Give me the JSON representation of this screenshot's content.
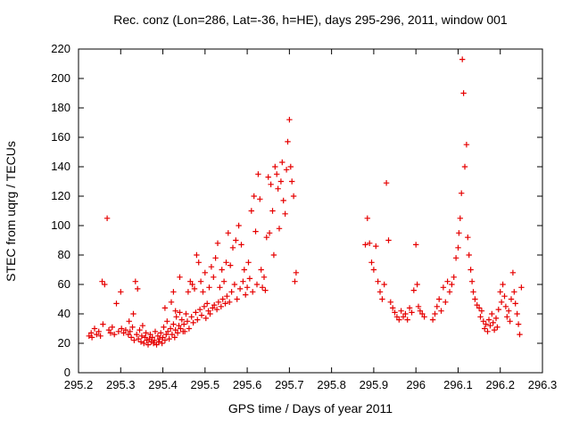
{
  "chart_data": {
    "type": "scatter",
    "title": "Rec. conz (Lon=286, Lat=-36, h=HE), days 295-296, 2011, window 001",
    "xlabel": "GPS time / Days of year 2011",
    "ylabel": "STEC from uqrg / TECUs",
    "xlim": [
      295.2,
      296.3
    ],
    "ylim": [
      0,
      220
    ],
    "grid": false,
    "legend_position": "none",
    "marker": "plus",
    "marker_color": "#e60000",
    "frame_color": "#000000",
    "x_ticks": {
      "values": [
        295.2,
        295.3,
        295.4,
        295.5,
        295.6,
        295.7,
        295.8,
        295.9,
        296.0,
        296.1,
        296.2,
        296.3
      ],
      "labels": [
        "295.2",
        "295.3",
        "295.4",
        "295.5",
        "295.6",
        "295.7",
        "295.8",
        "295.9",
        "296",
        "296.1",
        "296.2",
        "296.3"
      ]
    },
    "y_ticks": {
      "values": [
        0,
        20,
        40,
        60,
        80,
        100,
        120,
        140,
        160,
        180,
        200,
        220
      ],
      "labels": [
        "0",
        "20",
        "40",
        "60",
        "80",
        "100",
        "120",
        "140",
        "160",
        "180",
        "200",
        "220"
      ]
    },
    "points": [
      [
        295.225,
        25
      ],
      [
        295.23,
        27
      ],
      [
        295.232,
        24
      ],
      [
        295.238,
        30
      ],
      [
        295.243,
        26
      ],
      [
        295.248,
        28
      ],
      [
        295.252,
        25
      ],
      [
        295.256,
        62
      ],
      [
        295.258,
        33
      ],
      [
        295.262,
        60
      ],
      [
        295.268,
        105
      ],
      [
        295.272,
        29
      ],
      [
        295.276,
        27
      ],
      [
        295.28,
        31
      ],
      [
        295.285,
        26
      ],
      [
        295.29,
        47
      ],
      [
        295.295,
        28
      ],
      [
        295.3,
        55
      ],
      [
        295.302,
        30
      ],
      [
        295.307,
        27
      ],
      [
        295.312,
        29
      ],
      [
        295.318,
        26
      ],
      [
        295.32,
        35
      ],
      [
        295.322,
        28
      ],
      [
        295.325,
        24
      ],
      [
        295.328,
        31
      ],
      [
        295.33,
        40
      ],
      [
        295.332,
        22
      ],
      [
        295.335,
        62
      ],
      [
        295.338,
        26
      ],
      [
        295.34,
        57
      ],
      [
        295.342,
        23
      ],
      [
        295.345,
        29
      ],
      [
        295.348,
        21
      ],
      [
        295.35,
        25
      ],
      [
        295.352,
        32
      ],
      [
        295.355,
        20
      ],
      [
        295.358,
        24
      ],
      [
        295.36,
        27
      ],
      [
        295.362,
        22
      ],
      [
        295.365,
        19
      ],
      [
        295.368,
        23
      ],
      [
        295.37,
        26
      ],
      [
        295.372,
        21
      ],
      [
        295.375,
        24
      ],
      [
        295.378,
        20
      ],
      [
        295.38,
        22
      ],
      [
        295.382,
        28
      ],
      [
        295.385,
        19
      ],
      [
        295.388,
        25
      ],
      [
        295.39,
        21
      ],
      [
        295.392,
        23
      ],
      [
        295.395,
        27
      ],
      [
        295.398,
        20
      ],
      [
        295.4,
        24
      ],
      [
        295.402,
        31
      ],
      [
        295.405,
        44
      ],
      [
        295.405,
        22
      ],
      [
        295.408,
        26
      ],
      [
        295.41,
        35
      ],
      [
        295.412,
        28
      ],
      [
        295.415,
        23
      ],
      [
        295.418,
        30
      ],
      [
        295.42,
        48
      ],
      [
        295.422,
        26
      ],
      [
        295.425,
        55
      ],
      [
        295.425,
        33
      ],
      [
        295.428,
        24
      ],
      [
        295.43,
        42
      ],
      [
        295.43,
        29
      ],
      [
        295.432,
        38
      ],
      [
        295.435,
        27
      ],
      [
        295.438,
        32
      ],
      [
        295.44,
        65
      ],
      [
        295.44,
        41
      ],
      [
        295.442,
        30
      ],
      [
        295.445,
        36
      ],
      [
        295.448,
        28
      ],
      [
        295.45,
        33
      ],
      [
        295.452,
        28
      ],
      [
        295.455,
        40
      ],
      [
        295.458,
        35
      ],
      [
        295.46,
        55
      ],
      [
        295.462,
        30
      ],
      [
        295.465,
        62
      ],
      [
        295.468,
        38
      ],
      [
        295.47,
        60
      ],
      [
        295.472,
        34
      ],
      [
        295.475,
        57
      ],
      [
        295.478,
        41
      ],
      [
        295.48,
        80
      ],
      [
        295.482,
        36
      ],
      [
        295.485,
        75
      ],
      [
        295.488,
        43
      ],
      [
        295.49,
        62
      ],
      [
        295.492,
        39
      ],
      [
        295.495,
        55
      ],
      [
        295.498,
        45
      ],
      [
        295.5,
        68
      ],
      [
        295.502,
        37
      ],
      [
        295.505,
        47
      ],
      [
        295.508,
        42
      ],
      [
        295.51,
        58
      ],
      [
        295.512,
        40
      ],
      [
        295.515,
        72
      ],
      [
        295.518,
        44
      ],
      [
        295.52,
        65
      ],
      [
        295.522,
        46
      ],
      [
        295.525,
        78
      ],
      [
        295.528,
        43
      ],
      [
        295.53,
        88
      ],
      [
        295.532,
        48
      ],
      [
        295.535,
        58
      ],
      [
        295.538,
        45
      ],
      [
        295.54,
        70
      ],
      [
        295.542,
        50
      ],
      [
        295.545,
        62
      ],
      [
        295.548,
        47
      ],
      [
        295.55,
        75
      ],
      [
        295.552,
        52
      ],
      [
        295.555,
        95
      ],
      [
        295.558,
        48
      ],
      [
        295.56,
        73
      ],
      [
        295.563,
        55
      ],
      [
        295.566,
        85
      ],
      [
        295.57,
        60
      ],
      [
        295.573,
        90
      ],
      [
        295.576,
        50
      ],
      [
        295.58,
        100
      ],
      [
        295.583,
        57
      ],
      [
        295.586,
        87
      ],
      [
        295.59,
        62
      ],
      [
        295.593,
        70
      ],
      [
        295.596,
        53
      ],
      [
        295.6,
        58
      ],
      [
        295.603,
        75
      ],
      [
        295.606,
        64
      ],
      [
        295.61,
        110
      ],
      [
        295.613,
        55
      ],
      [
        295.616,
        120
      ],
      [
        295.62,
        96
      ],
      [
        295.623,
        60
      ],
      [
        295.626,
        135
      ],
      [
        295.63,
        118
      ],
      [
        295.633,
        70
      ],
      [
        295.636,
        58
      ],
      [
        295.64,
        65
      ],
      [
        295.643,
        56
      ],
      [
        295.646,
        92
      ],
      [
        295.65,
        133
      ],
      [
        295.653,
        95
      ],
      [
        295.656,
        128
      ],
      [
        295.66,
        110
      ],
      [
        295.663,
        80
      ],
      [
        295.666,
        140
      ],
      [
        295.67,
        135
      ],
      [
        295.673,
        125
      ],
      [
        295.676,
        98
      ],
      [
        295.68,
        130
      ],
      [
        295.683,
        143
      ],
      [
        295.686,
        117
      ],
      [
        295.69,
        108
      ],
      [
        295.693,
        138
      ],
      [
        295.696,
        157
      ],
      [
        295.7,
        172
      ],
      [
        295.703,
        140
      ],
      [
        295.706,
        130
      ],
      [
        295.71,
        120
      ],
      [
        295.713,
        62
      ],
      [
        295.716,
        68
      ],
      [
        295.88,
        87
      ],
      [
        295.885,
        105
      ],
      [
        295.89,
        88
      ],
      [
        295.895,
        75
      ],
      [
        295.9,
        70
      ],
      [
        295.905,
        86
      ],
      [
        295.91,
        62
      ],
      [
        295.915,
        55
      ],
      [
        295.92,
        50
      ],
      [
        295.925,
        60
      ],
      [
        295.93,
        129
      ],
      [
        295.935,
        90
      ],
      [
        295.94,
        48
      ],
      [
        295.945,
        44
      ],
      [
        295.95,
        41
      ],
      [
        295.955,
        38
      ],
      [
        295.96,
        36
      ],
      [
        295.965,
        42
      ],
      [
        295.97,
        38
      ],
      [
        295.975,
        40
      ],
      [
        295.98,
        36
      ],
      [
        295.985,
        44
      ],
      [
        295.99,
        41
      ],
      [
        295.995,
        56
      ],
      [
        296.0,
        87
      ],
      [
        296.003,
        60
      ],
      [
        296.006,
        45
      ],
      [
        296.01,
        42
      ],
      [
        296.015,
        40
      ],
      [
        296.02,
        38
      ],
      [
        296.04,
        36
      ],
      [
        296.045,
        40
      ],
      [
        296.05,
        45
      ],
      [
        296.055,
        50
      ],
      [
        296.06,
        42
      ],
      [
        296.065,
        58
      ],
      [
        296.07,
        48
      ],
      [
        296.075,
        62
      ],
      [
        296.08,
        55
      ],
      [
        296.085,
        60
      ],
      [
        296.09,
        65
      ],
      [
        296.095,
        78
      ],
      [
        296.1,
        85
      ],
      [
        296.102,
        95
      ],
      [
        296.105,
        105
      ],
      [
        296.108,
        122
      ],
      [
        296.11,
        213
      ],
      [
        296.113,
        190
      ],
      [
        296.116,
        140
      ],
      [
        296.12,
        155
      ],
      [
        296.123,
        92
      ],
      [
        296.126,
        80
      ],
      [
        296.13,
        70
      ],
      [
        296.133,
        62
      ],
      [
        296.136,
        55
      ],
      [
        296.14,
        50
      ],
      [
        296.145,
        46
      ],
      [
        296.15,
        44
      ],
      [
        296.153,
        38
      ],
      [
        296.156,
        42
      ],
      [
        296.16,
        35
      ],
      [
        296.163,
        30
      ],
      [
        296.166,
        33
      ],
      [
        296.17,
        28
      ],
      [
        296.173,
        36
      ],
      [
        296.176,
        32
      ],
      [
        296.18,
        40
      ],
      [
        296.183,
        34
      ],
      [
        296.186,
        29
      ],
      [
        296.19,
        37
      ],
      [
        296.193,
        31
      ],
      [
        296.196,
        43
      ],
      [
        296.2,
        55
      ],
      [
        296.203,
        48
      ],
      [
        296.206,
        60
      ],
      [
        296.21,
        52
      ],
      [
        296.213,
        45
      ],
      [
        296.216,
        38
      ],
      [
        296.22,
        42
      ],
      [
        296.223,
        35
      ],
      [
        296.226,
        50
      ],
      [
        296.23,
        68
      ],
      [
        296.233,
        55
      ],
      [
        296.236,
        47
      ],
      [
        296.24,
        40
      ],
      [
        296.243,
        33
      ],
      [
        296.246,
        26
      ],
      [
        296.25,
        58
      ]
    ]
  }
}
